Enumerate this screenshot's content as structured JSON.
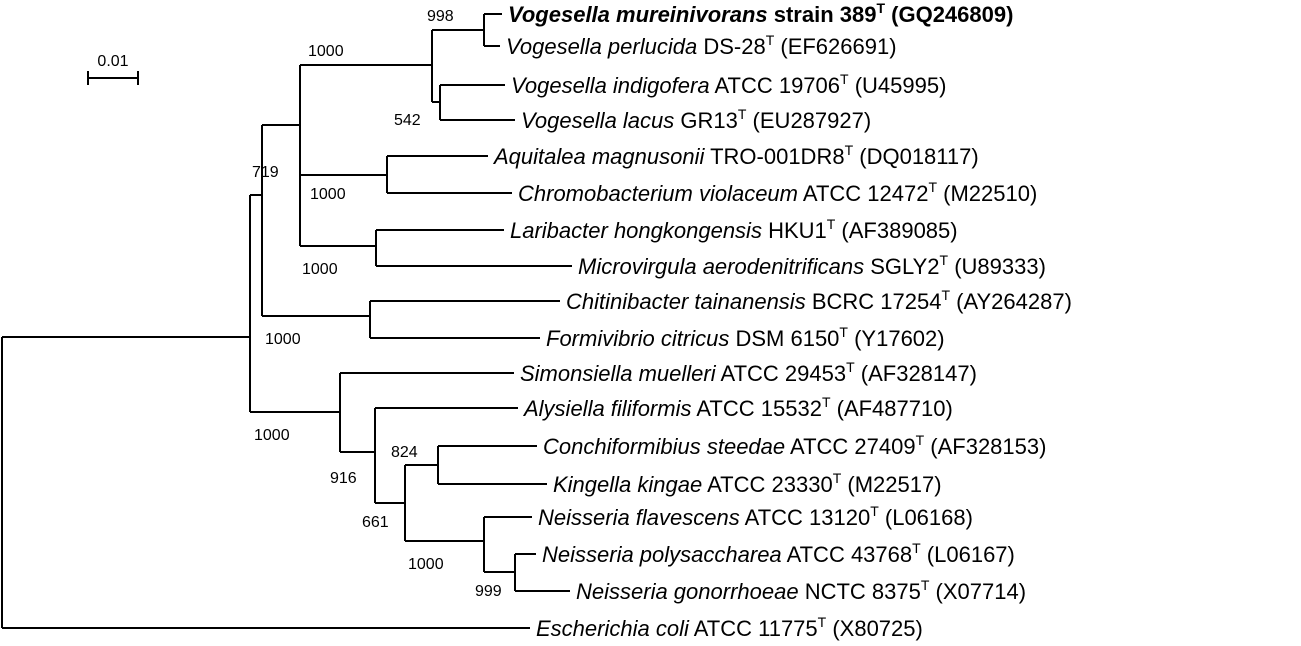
{
  "scale_bar": {
    "label": "0.01"
  },
  "leaves": [
    {
      "id": "l1",
      "genus_species": "Vogesella mureinivorans",
      "strain": "strain 389",
      "acc": "(GQ246809)",
      "bold": true
    },
    {
      "id": "l2",
      "genus_species": "Vogesella perlucida",
      "strain": "DS-28",
      "acc": "(EF626691)"
    },
    {
      "id": "l3",
      "genus_species": "Vogesella indigofera",
      "strain": "ATCC 19706",
      "acc": "(U45995)"
    },
    {
      "id": "l4",
      "genus_species": "Vogesella lacus",
      "strain": "GR13",
      "acc": "(EU287927)"
    },
    {
      "id": "l5",
      "genus_species": "Aquitalea magnusonii",
      "strain": "TRO-001DR8",
      "acc": "(DQ018117)"
    },
    {
      "id": "l6",
      "genus_species": "Chromobacterium violaceum",
      "strain": "ATCC 12472",
      "acc": "(M22510)"
    },
    {
      "id": "l7",
      "genus_species": "Laribacter hongkongensis",
      "strain": "HKU1",
      "acc": "(AF389085)"
    },
    {
      "id": "l8",
      "genus_species": "Microvirgula aerodenitrificans",
      "strain": "SGLY2",
      "acc": "(U89333)"
    },
    {
      "id": "l9",
      "genus_species": "Chitinibacter tainanensis",
      "strain": "BCRC 17254",
      "acc": "(AY264287)"
    },
    {
      "id": "l10",
      "genus_species": "Formivibrio citricus",
      "strain": "DSM 6150",
      "acc": "(Y17602)"
    },
    {
      "id": "l11",
      "genus_species": "Simonsiella muelleri",
      "strain": "ATCC 29453",
      "acc": "(AF328147)"
    },
    {
      "id": "l12",
      "genus_species": "Alysiella filiformis",
      "strain": "ATCC 15532",
      "acc": "(AF487710)"
    },
    {
      "id": "l13",
      "genus_species": "Conchiformibius steedae",
      "strain": "ATCC 27409",
      "acc": "(AF328153)"
    },
    {
      "id": "l14",
      "genus_species": "Kingella kingae",
      "strain": "ATCC 23330",
      "acc": "(M22517)"
    },
    {
      "id": "l15",
      "genus_species": "Neisseria flavescens",
      "strain": "ATCC 13120",
      "acc": "(L06168)"
    },
    {
      "id": "l16",
      "genus_species": "Neisseria polysaccharea",
      "strain": "ATCC 43768",
      "acc": "(L06167)"
    },
    {
      "id": "l17",
      "genus_species": "Neisseria gonorrhoeae",
      "strain": "NCTC 8375",
      "acc": "(X07714)"
    },
    {
      "id": "l18",
      "genus_species": "Escherichia coli",
      "strain": "ATCC 11775",
      "acc": "(X80725)"
    }
  ],
  "type_strain_mark": "T",
  "bootstrap": {
    "b998": "998",
    "b1000a": "1000",
    "b542": "542",
    "b719": "719",
    "b1000b": "1000",
    "b1000c": "1000",
    "b1000d": "1000",
    "b1000e": "1000",
    "b916": "916",
    "b824": "824",
    "b661": "661",
    "b1000f": "1000",
    "b999": "999"
  }
}
